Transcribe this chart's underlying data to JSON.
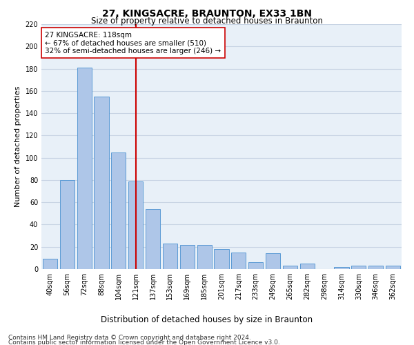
{
  "title": "27, KINGSACRE, BRAUNTON, EX33 1BN",
  "subtitle": "Size of property relative to detached houses in Braunton",
  "xlabel": "Distribution of detached houses by size in Braunton",
  "ylabel": "Number of detached properties",
  "categories": [
    "40sqm",
    "56sqm",
    "72sqm",
    "88sqm",
    "104sqm",
    "121sqm",
    "137sqm",
    "153sqm",
    "169sqm",
    "185sqm",
    "201sqm",
    "217sqm",
    "233sqm",
    "249sqm",
    "265sqm",
    "282sqm",
    "298sqm",
    "314sqm",
    "330sqm",
    "346sqm",
    "362sqm"
  ],
  "values": [
    9,
    80,
    181,
    155,
    105,
    79,
    54,
    23,
    22,
    22,
    18,
    15,
    6,
    14,
    3,
    5,
    0,
    2,
    3,
    3,
    3
  ],
  "bar_color": "#aec6e8",
  "bar_edge_color": "#5b9bd5",
  "red_line_index": 5,
  "red_line_color": "#cc0000",
  "annotation_line1": "27 KINGSACRE: 118sqm",
  "annotation_line2": "← 67% of detached houses are smaller (510)",
  "annotation_line3": "32% of semi-detached houses are larger (246) →",
  "annotation_box_color": "#ffffff",
  "annotation_box_edge": "#cc0000",
  "ylim": [
    0,
    220
  ],
  "yticks": [
    0,
    20,
    40,
    60,
    80,
    100,
    120,
    140,
    160,
    180,
    200,
    220
  ],
  "grid_color": "#c8d4e4",
  "bg_color": "#e8f0f8",
  "footnote1": "Contains HM Land Registry data © Crown copyright and database right 2024.",
  "footnote2": "Contains public sector information licensed under the Open Government Licence v3.0.",
  "title_fontsize": 10,
  "subtitle_fontsize": 8.5,
  "ylabel_fontsize": 8,
  "xlabel_fontsize": 8.5,
  "tick_fontsize": 7,
  "annotation_fontsize": 7.5,
  "footnote_fontsize": 6.5
}
